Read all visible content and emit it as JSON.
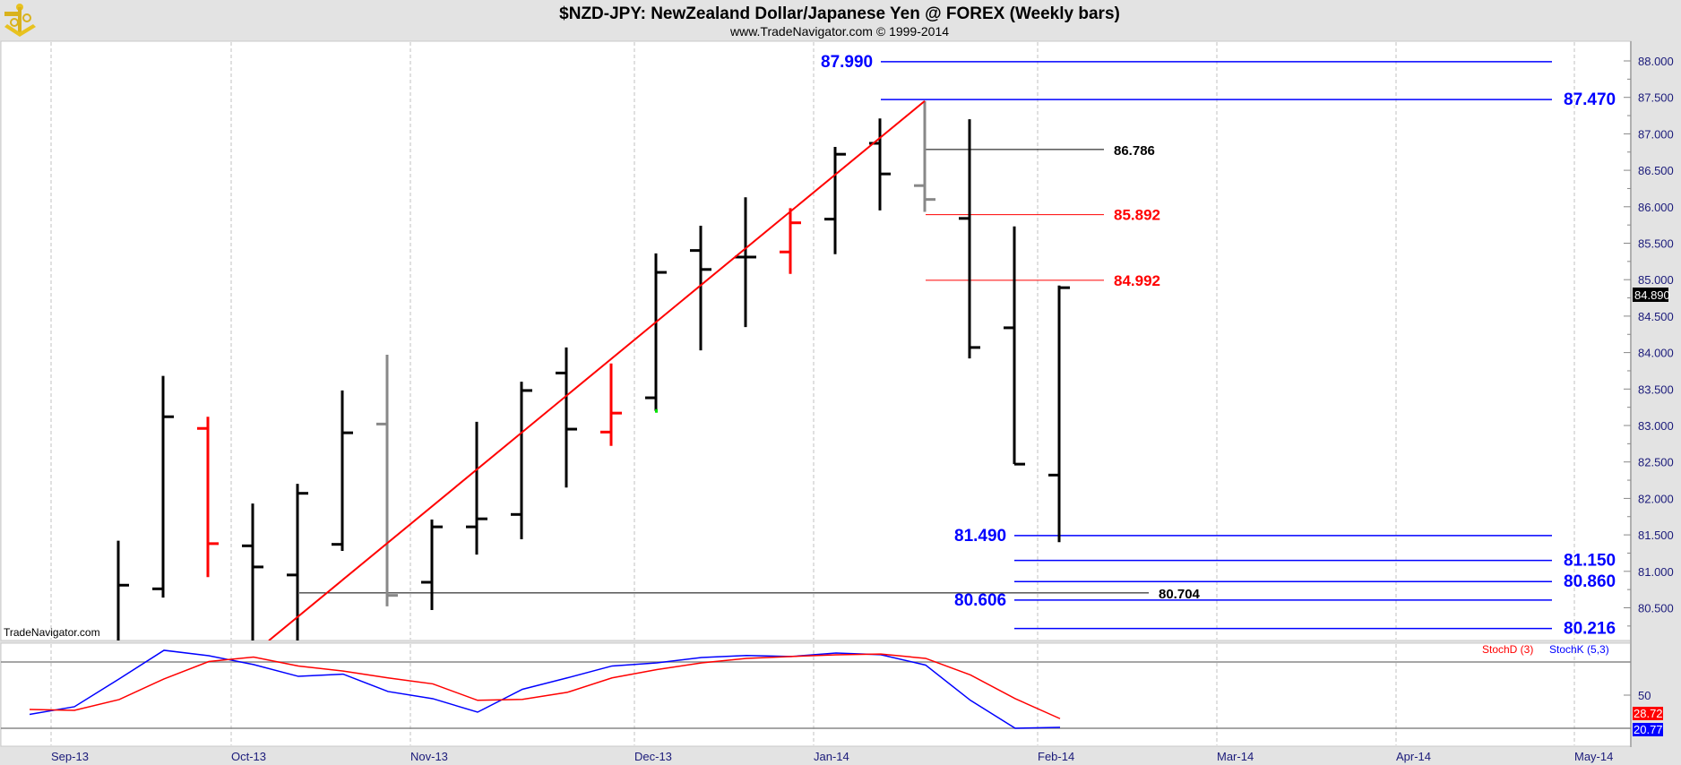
{
  "header": {
    "title": "$NZD-JPY:  NewZealand Dollar/Japanese Yen @ FOREX  (Weekly bars)",
    "subtitle": "www.TradeNavigator.com © 1999-2014",
    "logo": "sextant-logo",
    "watermark": "TradeNavigator.com"
  },
  "colors": {
    "up": "#000000",
    "down": "#ff0000",
    "neutral": "#888888",
    "stochK": "#0000ff",
    "stochD": "#ff0000",
    "trend": "#ff0000"
  },
  "chart_data": [
    {
      "type": "ohlc",
      "title": "$NZD-JPY weekly bars",
      "ylim": [
        80.1,
        88.28
      ],
      "y_ticks": [
        "88.000",
        "87.500",
        "87.000",
        "86.500",
        "86.000",
        "85.500",
        "85.000",
        "84.500",
        "84.000",
        "83.500",
        "83.000",
        "82.500",
        "82.000",
        "81.500",
        "81.000",
        "80.500"
      ],
      "x_ticks": [
        "Sep-13",
        "Oct-13",
        "Nov-13",
        "Dec-13",
        "Jan-14",
        "Feb-14",
        "Mar-14",
        "Apr-14",
        "May-14"
      ],
      "last_price": "84.890",
      "bars": [
        null,
        null,
        {
          "o": null,
          "h": 81.42,
          "l": 79.9,
          "c": 80.81,
          "color": "up"
        },
        {
          "o": 80.76,
          "h": 83.68,
          "l": 80.64,
          "c": 83.12,
          "color": "up"
        },
        {
          "o": 82.96,
          "h": 83.12,
          "l": 80.92,
          "c": 81.38,
          "color": "down"
        },
        {
          "o": 81.35,
          "h": 81.93,
          "l": 79.9,
          "c": 81.06,
          "color": "up"
        },
        {
          "o": 80.95,
          "h": 82.2,
          "l": 79.9,
          "c": 82.07,
          "color": "up"
        },
        {
          "o": 81.37,
          "h": 83.48,
          "l": 81.28,
          "c": 82.9,
          "color": "up"
        },
        {
          "o": 83.02,
          "h": 83.97,
          "l": 80.52,
          "c": 80.67,
          "color": "neutral"
        },
        {
          "o": 80.85,
          "h": 81.71,
          "l": 80.47,
          "c": 81.61,
          "color": "up"
        },
        {
          "o": 81.61,
          "h": 83.05,
          "l": 81.23,
          "c": 81.72,
          "color": "up"
        },
        {
          "o": 81.78,
          "h": 83.6,
          "l": 81.44,
          "c": 83.48,
          "color": "up"
        },
        {
          "o": 83.72,
          "h": 84.07,
          "l": 82.15,
          "c": 82.95,
          "color": "up"
        },
        {
          "o": 82.91,
          "h": 83.85,
          "l": 82.72,
          "c": 83.17,
          "color": "down"
        },
        {
          "o": 83.38,
          "h": 85.36,
          "l": 83.2,
          "c": 85.1,
          "color": "up"
        },
        {
          "o": 85.4,
          "h": 85.74,
          "l": 84.03,
          "c": 85.14,
          "color": "up"
        },
        {
          "o": 85.31,
          "h": 86.13,
          "l": 84.35,
          "c": 85.31,
          "color": "up"
        },
        {
          "o": 85.38,
          "h": 85.98,
          "l": 85.08,
          "c": 85.78,
          "color": "down"
        },
        {
          "o": 85.83,
          "h": 86.82,
          "l": 85.35,
          "c": 86.72,
          "color": "up"
        },
        {
          "o": 86.87,
          "h": 87.21,
          "l": 85.95,
          "c": 86.45,
          "color": "up"
        },
        {
          "o": 86.29,
          "h": 87.45,
          "l": 85.93,
          "c": 86.1,
          "color": "neutral"
        },
        {
          "o": 85.84,
          "h": 87.2,
          "l": 83.92,
          "c": 84.07,
          "color": "up"
        },
        {
          "o": 84.34,
          "h": 85.73,
          "l": 82.47,
          "c": 82.47,
          "color": "up"
        },
        {
          "o": 82.32,
          "h": 84.92,
          "l": 81.4,
          "c": 84.89,
          "color": "up"
        }
      ],
      "trendline": {
        "start": {
          "week": 5.36,
          "price": 80.05
        },
        "end": {
          "week": 20,
          "price": 87.45
        }
      },
      "levels": [
        {
          "label": "87.990",
          "price": 87.99,
          "color": "blue"
        },
        {
          "label": "87.470",
          "price": 87.47,
          "color": "blue"
        },
        {
          "label": "86.786",
          "price": 86.786,
          "color": "black"
        },
        {
          "label": "85.892",
          "price": 85.892,
          "color": "red"
        },
        {
          "label": "84.992",
          "price": 84.992,
          "color": "red"
        },
        {
          "label": "81.490",
          "price": 81.49,
          "color": "blue"
        },
        {
          "label": "81.150",
          "price": 81.15,
          "color": "blue"
        },
        {
          "label": "80.860",
          "price": 80.86,
          "color": "blue"
        },
        {
          "label": "80.606",
          "price": 80.606,
          "color": "blue"
        },
        {
          "label": "80.216",
          "price": 80.216,
          "color": "blue"
        },
        {
          "label": "80.704",
          "price": 80.704,
          "color": "black"
        }
      ]
    },
    {
      "type": "line",
      "title": "Stochastic",
      "ylim": [
        0,
        100
      ],
      "y_ticks": [
        "50"
      ],
      "reference_lines": [
        80,
        20
      ],
      "legend": [
        "StochD (3)",
        "StochK (5,3)"
      ],
      "legend_position": "top-right",
      "last_values": {
        "d": "28.72",
        "k": "20.77"
      },
      "series": [
        {
          "name": "StochK (5,3)",
          "color": "stochK",
          "values": [
            32.6,
            39.5,
            64.7,
            90.6,
            85.7,
            77.7,
            67,
            69,
            53.3,
            46.8,
            34.6,
            55.3,
            65.6,
            76.4,
            79.2,
            84.1,
            85.9,
            85,
            88.1,
            86.6,
            77.2,
            45.3,
            20,
            20.77
          ]
        },
        {
          "name": "StochD (3)",
          "color": "stochD",
          "values": [
            37,
            36.2,
            46,
            64.7,
            80.4,
            84.5,
            76.4,
            71.8,
            65.6,
            60.2,
            45.3,
            46.2,
            52.5,
            65.6,
            73.1,
            79.2,
            83.3,
            85,
            86.5,
            87.2,
            83.3,
            68.3,
            46.8,
            28.72
          ]
        }
      ]
    }
  ]
}
